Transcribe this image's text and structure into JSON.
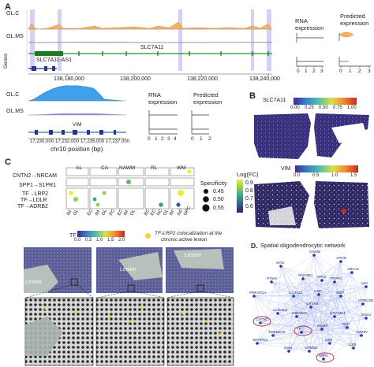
{
  "panelA": {
    "letter": "A",
    "tracks": [
      "OL.C",
      "OL.MS"
    ],
    "genes_label": "Genes",
    "gene_big": "SLC7A11",
    "gene_as": "SLC7A11-AS1",
    "ticks": [
      "138,180,000",
      "138,200,000",
      "138,220,000",
      "138,240,000"
    ],
    "rna_title": [
      "RNA",
      "expression"
    ],
    "pred_title": [
      "Predicted",
      "expression"
    ],
    "rna_ticks": [
      "0",
      "1",
      "2",
      "3"
    ],
    "pred_ticks": [
      "0",
      "1",
      "2",
      "3"
    ]
  },
  "panelA2": {
    "tracks": [
      "OL.C",
      "OL.MS"
    ],
    "gene": "VIM",
    "ticks": [
      "17,230,000",
      "17,232,000",
      "17,235,000",
      "17,237,000"
    ],
    "xlabel": "chr10 position (bp)",
    "rna_title": [
      "RNA",
      "expression"
    ],
    "pred_title": [
      "Predicted",
      "expression"
    ],
    "rna_ticks": [
      "0",
      "1",
      "2",
      "3",
      "4"
    ],
    "pred_ticks": [
      "0",
      "1",
      "2"
    ]
  },
  "panelB": {
    "letter": "B",
    "legend1": {
      "label": "SLC7A11",
      "ticks": [
        "0.00",
        "0.25",
        "0.50",
        "0.75",
        "1.00"
      ]
    },
    "legend2": {
      "label": "VIM",
      "ticks": [
        "0.0",
        "0.5",
        "1.0",
        "1.5"
      ]
    }
  },
  "panelC": {
    "letter": "C",
    "groups": [
      "AL",
      "CA",
      "NAWM",
      "RL",
      "WM"
    ],
    "rows": [
      "CNTN2→NRCAM",
      "SPP1→S1PR1",
      "TF→LRP2",
      "TF→LDLR",
      "TF→ADRB2"
    ],
    "xcats": [
      "IM",
      "OL",
      "EC",
      "IM",
      "OL",
      "PC",
      "EC",
      "IM",
      "OL",
      "BC",
      "EC",
      "NC",
      "OL",
      "IM",
      "NC",
      "OPC"
    ],
    "size_title": "Specificity",
    "size_vals": [
      "0.45",
      "0.50",
      "0.55"
    ],
    "color_title": "Log(FC)",
    "color_vals": [
      "0.9",
      "0.8",
      "0.7",
      "0.6"
    ],
    "color_scale": [
      "#f5e63a",
      "#8fd14f",
      "#2fa58a",
      "#3a5b8c",
      "#3b1f5a"
    ]
  },
  "panelTF": {
    "legend_label": "TF",
    "ticks": [
      "0.0",
      "0.5",
      "1.0",
      "1.5",
      "2.0"
    ],
    "coloc_label": [
      "TF-LRP2 colocalization at the",
      "chronic active lesion"
    ],
    "lesion": "Lesion"
  },
  "panelD": {
    "letter": "D.",
    "title": "Spatial oligodendrocytic network",
    "nodes": [
      "GNMB",
      "APOD",
      "MAG",
      "ABCA2",
      "PTMA",
      "RNASE1",
      "RPL8",
      "TRPPC",
      "QKI",
      "PRKAR1A",
      "CLDN11",
      "CNP",
      "MBP",
      "GPRC5B",
      "CLDND1",
      "CNTN2",
      "DBNDD2",
      "TF",
      "MOBP",
      "GRAMD1",
      "PLP",
      "ERMN",
      "SEPTIN4",
      "SPP1",
      "CKB",
      "CRYAB",
      "CD9",
      "GSN",
      "ENO2",
      "TMEM125",
      "GPM6B"
    ],
    "highlighted": [
      "CNTN2",
      "TF",
      "SPP1"
    ]
  }
}
